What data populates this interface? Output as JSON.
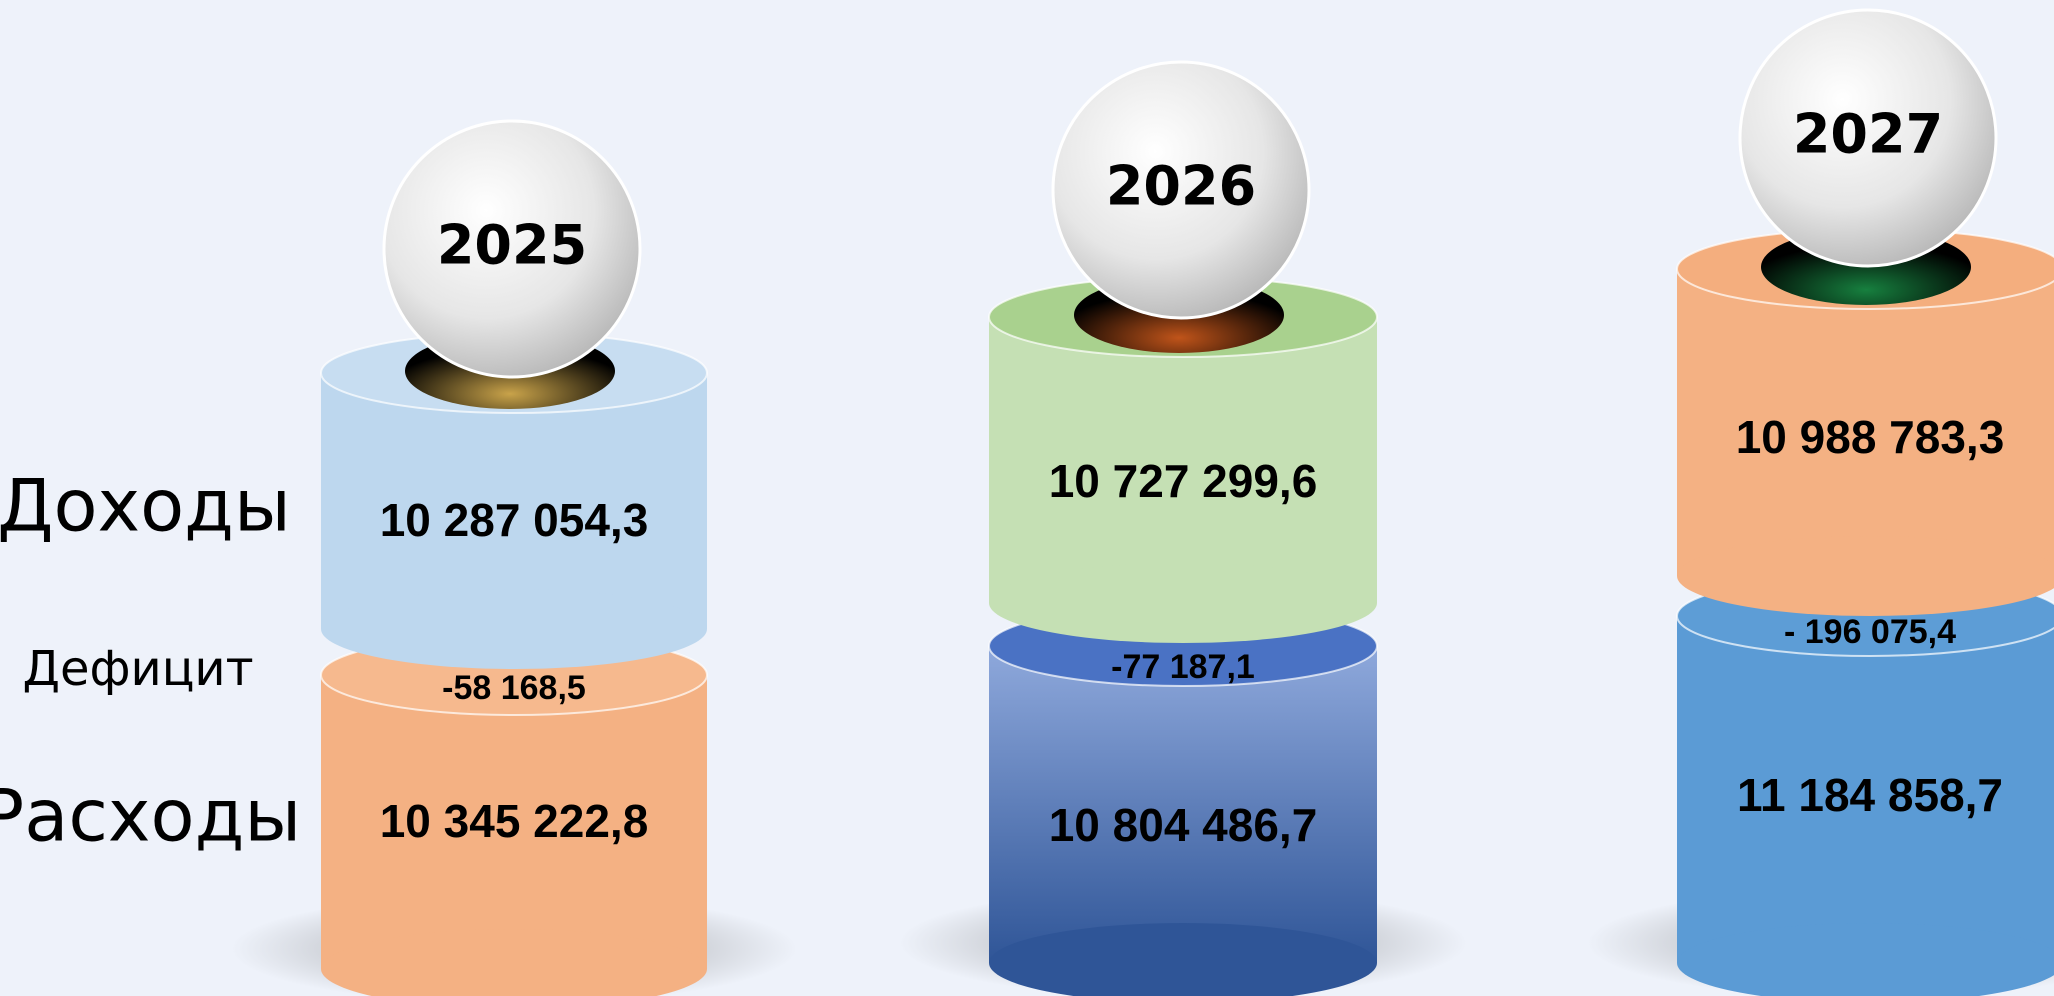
{
  "labels": {
    "income": "Доходы",
    "deficit": "Дефицит",
    "expenses": "Расходы"
  },
  "years": [
    {
      "year": "2025",
      "income": "10 287 054,3",
      "deficit": "-58 168,5",
      "expenses": "10 345 222,8"
    },
    {
      "year": "2026",
      "income": "10 727 299,6",
      "deficit": "-77 187,1",
      "expenses": "10 804 486,7"
    },
    {
      "year": "2027",
      "income": "10 988 783,3",
      "deficit": "- 196 075,4",
      "expenses": "11 184 858,7"
    }
  ]
}
